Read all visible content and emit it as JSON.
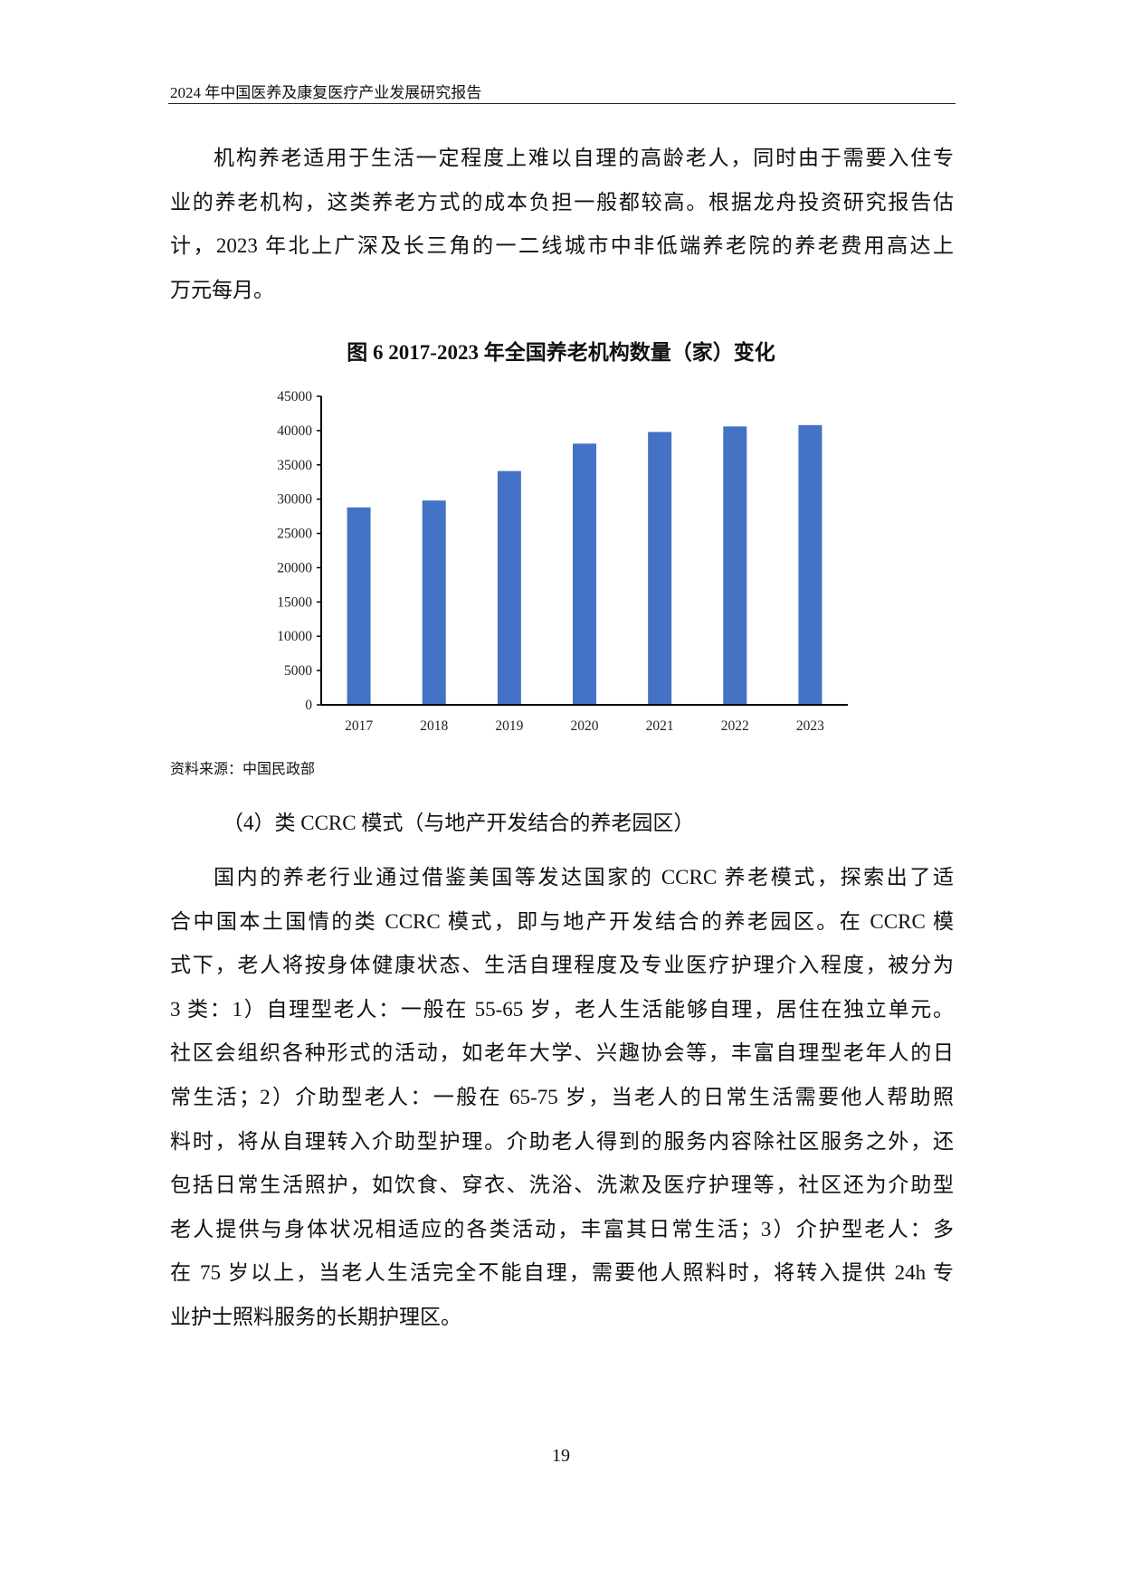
{
  "header": {
    "title": "2024 年中国医养及康复医疗产业发展研究报告"
  },
  "paragraph1": [
    "机构养老适用于生活一定程度上难以自理的高龄老人，同时由于需要入住专",
    "业的养老机构，这类养老方式的成本负担一般都较高。根据龙舟投资研究报告估",
    "计，2023 年北上广深及长三角的一二线城市中非低端养老院的养老费用高达上",
    "万元每月。"
  ],
  "figure": {
    "caption": "图 6  2017-2023 年全国养老机构数量（家）变化",
    "source": "资料来源：中国民政部"
  },
  "chart_data": {
    "type": "bar",
    "title": "图 6  2017-2023 年全国养老机构数量（家）变化",
    "categories": [
      "2017",
      "2018",
      "2019",
      "2020",
      "2021",
      "2022",
      "2023"
    ],
    "values": [
      28800,
      29800,
      34100,
      38100,
      39800,
      40600,
      40800
    ],
    "ylim": [
      0,
      45000
    ],
    "yticks": [
      "0",
      "5000",
      "10000",
      "15000",
      "20000",
      "25000",
      "30000",
      "35000",
      "40000",
      "45000"
    ],
    "xlabel": "",
    "ylabel": "",
    "grid": false,
    "bar_color": "#4472C4"
  },
  "subheading": "（4）类 CCRC 模式（与地产开发结合的养老园区）",
  "paragraph2": [
    "国内的养老行业通过借鉴美国等发达国家的 CCRC 养老模式，探索出了适",
    "合中国本土国情的类 CCRC 模式，即与地产开发结合的养老园区。在 CCRC 模",
    "式下，老人将按身体健康状态、生活自理程度及专业医疗护理介入程度，被分为",
    "3 类：1）自理型老人：一般在 55-65 岁，老人生活能够自理，居住在独立单元。",
    "社区会组织各种形式的活动，如老年大学、兴趣协会等，丰富自理型老年人的日",
    "常生活；2）介助型老人：一般在 65-75 岁，当老人的日常生活需要他人帮助照",
    "料时，将从自理转入介助型护理。介助老人得到的服务内容除社区服务之外，还",
    "包括日常生活照护，如饮食、穿衣、洗浴、洗漱及医疗护理等，社区还为介助型",
    "老人提供与身体状况相适应的各类活动，丰富其日常生活；3）介护型老人：多",
    "在 75 岁以上，当老人生活完全不能自理，需要他人照料时，将转入提供 24h 专",
    "业护士照料服务的长期护理区。"
  ],
  "page_number": "19"
}
